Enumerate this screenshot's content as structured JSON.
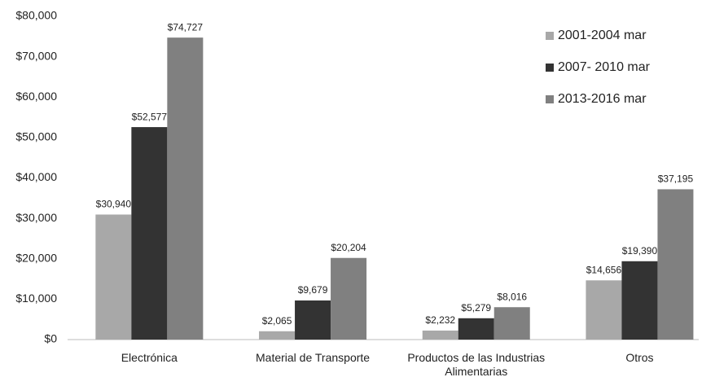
{
  "chart_data": {
    "type": "bar",
    "categories": [
      "Electrónica",
      "Material de Transporte",
      "Productos de las Industrias Alimentarias",
      "Otros"
    ],
    "series": [
      {
        "name": "2001-2004 mar",
        "color": "#a8a8a8",
        "values": [
          30940,
          2065,
          2232,
          14656
        ],
        "value_labels": [
          "$30,940",
          "$2,065",
          "$2,232",
          "$14,656"
        ]
      },
      {
        "name": "2007- 2010 mar",
        "color": "#333333",
        "values": [
          52577,
          9679,
          5279,
          19390
        ],
        "value_labels": [
          "$52,577",
          "$9,679",
          "$5,279",
          "$19,390"
        ]
      },
      {
        "name": "2013-2016 mar",
        "color": "#808080",
        "values": [
          74727,
          20204,
          8016,
          37195
        ],
        "value_labels": [
          "$74,727",
          "$20,204",
          "$8,016",
          "$37,195"
        ]
      }
    ],
    "ylim": [
      0,
      80000
    ],
    "yticks": [
      {
        "value": 0,
        "label": "$0"
      },
      {
        "value": 10000,
        "label": "$10,000"
      },
      {
        "value": 20000,
        "label": "$20,000"
      },
      {
        "value": 30000,
        "label": "$30,000"
      },
      {
        "value": 40000,
        "label": "$40,000"
      },
      {
        "value": 50000,
        "label": "$50,000"
      },
      {
        "value": 60000,
        "label": "$60,000"
      },
      {
        "value": 70000,
        "label": "$70,000"
      },
      {
        "value": 80000,
        "label": "$80,000"
      }
    ],
    "legend": "top-right",
    "grid": false
  }
}
